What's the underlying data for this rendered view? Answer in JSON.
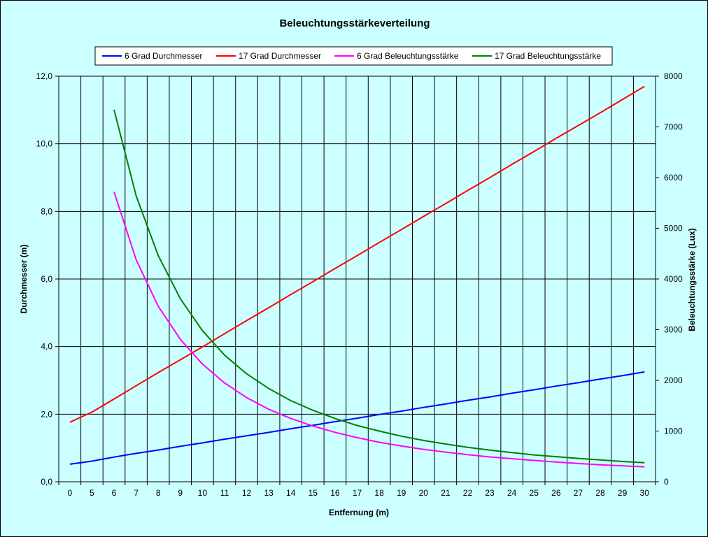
{
  "chart_data": {
    "type": "line",
    "title": "Beleuchtungsstärkeverteilung",
    "xlabel": "Entfernung (m)",
    "ylabel_left": "Durchmesser (m)",
    "ylabel_right": "Beleuchtungsstärke (Lux)",
    "x": [
      0,
      5,
      6,
      7,
      8,
      9,
      10,
      11,
      12,
      13,
      14,
      15,
      16,
      17,
      18,
      19,
      20,
      21,
      22,
      23,
      24,
      25,
      26,
      27,
      28,
      29,
      30
    ],
    "x_tick_labels": [
      "0",
      "5",
      "6",
      "7",
      "8",
      "9",
      "10",
      "11",
      "12",
      "13",
      "14",
      "15",
      "16",
      "17",
      "18",
      "19",
      "20",
      "21",
      "22",
      "23",
      "24",
      "25",
      "26",
      "27",
      "28",
      "29",
      "30"
    ],
    "ylim_left": [
      0,
      12
    ],
    "yticks_left": [
      "0,0",
      "2,0",
      "4,0",
      "6,0",
      "8,0",
      "10,0",
      "12,0"
    ],
    "ylim_right": [
      0,
      8000
    ],
    "yticks_right": [
      "0",
      "1000",
      "2000",
      "3000",
      "4000",
      "5000",
      "6000",
      "7000",
      "8000"
    ],
    "grid": true,
    "legend_position": "top",
    "series": [
      {
        "name": "6 Grad Durchmesser",
        "axis": "left",
        "color": "#0000ff",
        "values": [
          0.52,
          0.61,
          0.73,
          0.84,
          0.94,
          1.05,
          1.15,
          1.26,
          1.36,
          1.46,
          1.57,
          1.67,
          1.78,
          1.88,
          1.99,
          2.09,
          2.2,
          2.3,
          2.41,
          2.51,
          2.62,
          2.72,
          2.83,
          2.93,
          3.04,
          3.14,
          3.25
        ]
      },
      {
        "name": "17 Grad Durchmesser",
        "axis": "left",
        "color": "#ff0000",
        "values": [
          1.76,
          2.06,
          2.45,
          2.84,
          3.23,
          3.61,
          3.99,
          4.38,
          4.77,
          5.15,
          5.54,
          5.92,
          6.31,
          6.69,
          7.08,
          7.46,
          7.85,
          8.23,
          8.62,
          9.0,
          9.39,
          9.77,
          10.16,
          10.54,
          10.92,
          11.31,
          11.7
        ]
      },
      {
        "name": "6 Grad Beleuchtungsstärke",
        "axis": "right",
        "color": "#ff00ff",
        "values": [
          null,
          null,
          5720,
          4380,
          3460,
          2810,
          2320,
          1950,
          1660,
          1430,
          1250,
          1100,
          975,
          870,
          780,
          705,
          640,
          585,
          535,
          490,
          455,
          420,
          390,
          360,
          335,
          315,
          295
        ]
      },
      {
        "name": "17 Grad Beleuchtungsstärke",
        "axis": "right",
        "color": "#008000",
        "values": [
          null,
          null,
          7340,
          5640,
          4460,
          3610,
          2980,
          2500,
          2130,
          1840,
          1600,
          1410,
          1250,
          1110,
          1000,
          900,
          815,
          745,
          680,
          625,
          575,
          530,
          495,
          460,
          430,
          400,
          375
        ]
      }
    ]
  }
}
